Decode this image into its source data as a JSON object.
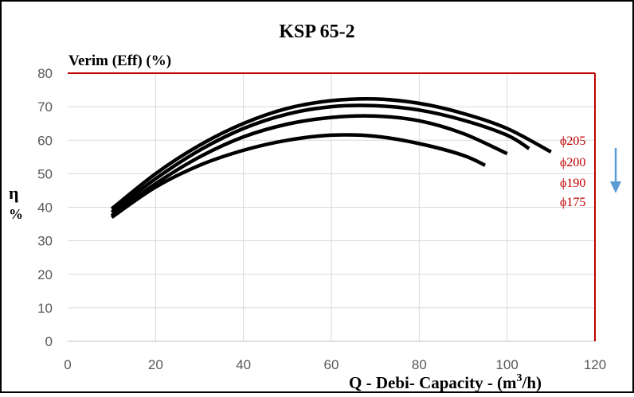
{
  "chart_data": {
    "type": "line",
    "title": "KSP 65-2",
    "ylabel_top": "Verim (Eff) (%)",
    "ylabel_side_symbol": "η",
    "ylabel_side_unit": "%",
    "xlabel_prefix": "Q - Debi- Capacity - (m",
    "xlabel_sup": "3",
    "xlabel_suffix": "/h)",
    "xlim": [
      0,
      120
    ],
    "ylim": [
      0,
      80
    ],
    "xticks": [
      0,
      20,
      40,
      60,
      80,
      100,
      120
    ],
    "yticks": [
      0,
      10,
      20,
      30,
      40,
      50,
      60,
      70,
      80
    ],
    "grid": true,
    "series": [
      {
        "name": "ϕ205",
        "x": [
          10,
          20,
          30,
          40,
          50,
          60,
          70,
          80,
          90,
          100,
          110
        ],
        "y": [
          39.5,
          50,
          58.5,
          65,
          69.5,
          71.8,
          72.3,
          71,
          68,
          63.5,
          56.5
        ]
      },
      {
        "name": "ϕ200",
        "x": [
          10,
          20,
          30,
          40,
          50,
          60,
          70,
          80,
          90,
          100,
          105
        ],
        "y": [
          38.5,
          48.5,
          57,
          63.5,
          67.8,
          70,
          70.3,
          69,
          66,
          61.5,
          57.5
        ]
      },
      {
        "name": "ϕ190",
        "x": [
          10,
          20,
          30,
          40,
          50,
          60,
          70,
          80,
          90,
          100
        ],
        "y": [
          37.5,
          47,
          55,
          61,
          64.8,
          66.8,
          67.2,
          65.8,
          62,
          56
        ]
      },
      {
        "name": "ϕ175",
        "x": [
          10,
          20,
          30,
          40,
          50,
          60,
          70,
          80,
          90,
          95
        ],
        "y": [
          37,
          46,
          52.5,
          57,
          60,
          61.5,
          61.2,
          59,
          55.5,
          52.5
        ]
      }
    ],
    "colors": {
      "curve": "#000000",
      "axis_box": "#c00000",
      "legend_text": "#c00000",
      "arrow": "#5b9bd5",
      "grid": "#d9d9d9"
    }
  }
}
